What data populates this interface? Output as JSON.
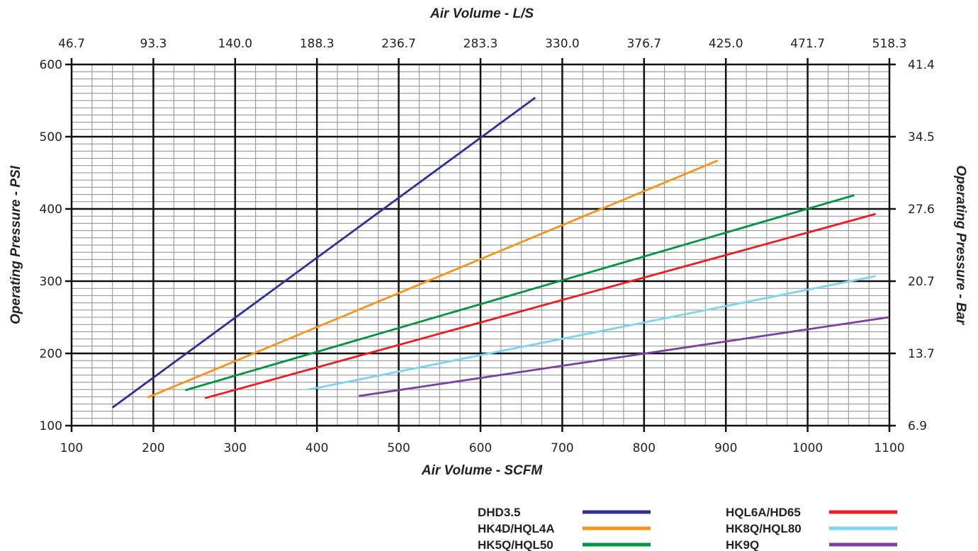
{
  "chart_data": {
    "type": "line",
    "xlabel": "Air Volume - SCFM",
    "ylabel": "Operating Pressure - PSI",
    "x2label": "Air Volume - L/S",
    "y2label": "Operating Pressure - Bar",
    "xlim": [
      100,
      1100
    ],
    "ylim": [
      100,
      600
    ],
    "x_ticks": [
      "100",
      "200",
      "300",
      "400",
      "500",
      "600",
      "700",
      "800",
      "900",
      "1000",
      "1100"
    ],
    "y_ticks": [
      "100",
      "200",
      "300",
      "400",
      "500",
      "600"
    ],
    "x2_ticks": [
      "46.7",
      "93.3",
      "140.0",
      "188.3",
      "236.7",
      "283.3",
      "330.0",
      "376.7",
      "425.0",
      "471.7",
      "518.3"
    ],
    "y2_ticks": [
      "6.9",
      "13.7",
      "20.7",
      "27.6",
      "34.5",
      "41.4"
    ],
    "grid": true,
    "legend_position": "bottom-right",
    "series": [
      {
        "name": "DHD3.5",
        "color": "#2e3192",
        "x": [
          150,
          667
        ],
        "y": [
          125,
          554
        ]
      },
      {
        "name": "HK4D/HQL4A",
        "color": "#f7941d",
        "x": [
          193,
          890
        ],
        "y": [
          139,
          467
        ]
      },
      {
        "name": "HK5Q/HQL50",
        "color": "#009245",
        "x": [
          239,
          1057
        ],
        "y": [
          149,
          419
        ]
      },
      {
        "name": "HQL6A/HD65",
        "color": "#ed1c24",
        "x": [
          263,
          1083
        ],
        "y": [
          138,
          393
        ]
      },
      {
        "name": "HK8Q/HQL80",
        "color": "#7dd3f0",
        "x": [
          390,
          1083
        ],
        "y": [
          150,
          307
        ]
      },
      {
        "name": "HK9Q",
        "color": "#7b3fa0",
        "x": [
          451,
          1099
        ],
        "y": [
          141,
          250
        ]
      }
    ]
  }
}
